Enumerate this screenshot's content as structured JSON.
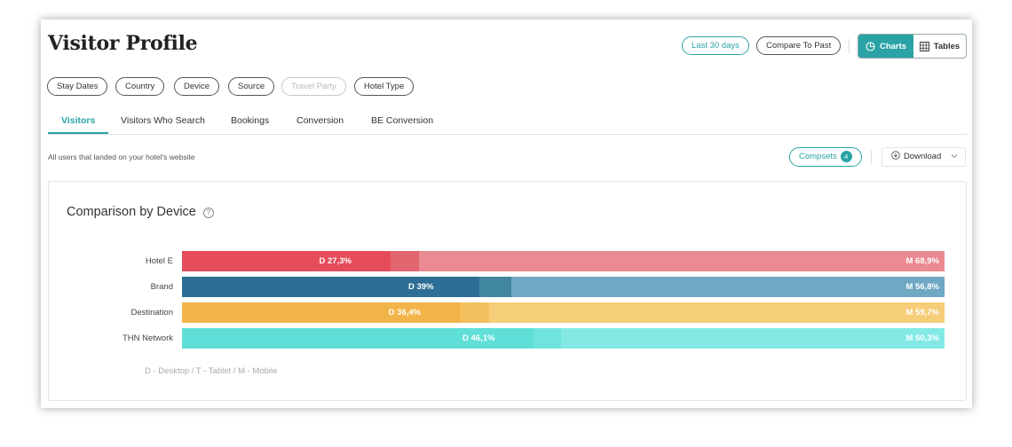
{
  "header": {
    "title": "Visitor Profile",
    "date_range_label": "Last 30 days",
    "compare_label": "Compare To Past",
    "view_toggle": {
      "charts_label": "Charts",
      "tables_label": "Tables",
      "active": "Charts"
    }
  },
  "filters": [
    "Stay Dates",
    "Country",
    "Device",
    "Source",
    "Travel Party",
    "Hotel Type"
  ],
  "disabled_filters": [
    "Travel Party"
  ],
  "tabs": [
    "Visitors",
    "Visitors Who Search",
    "Bookings",
    "Conversion",
    "BE Conversion"
  ],
  "active_tab": "Visitors",
  "subtitle": "All users that landed on your hotel's website",
  "compsets": {
    "label": "Compsets",
    "count": "4"
  },
  "download_label": "Download",
  "panel": {
    "title": "Comparison by Device",
    "legend": "D - Desktop / T - Tablet / M - Mobile"
  },
  "colors": {
    "accent": "#2aa3a6"
  },
  "chart_data": {
    "type": "bar",
    "orientation": "horizontal",
    "stacked": true,
    "xlim": [
      0,
      100
    ],
    "categories": [
      "Hotel E",
      "Brand",
      "Destination",
      "THN Network"
    ],
    "series": [
      {
        "name": "D",
        "values": [
          27.3,
          39,
          36.4,
          46.1
        ],
        "labels": [
          "D 27,3%",
          "D 39%",
          "D 36,4%",
          "D 46,1%"
        ]
      },
      {
        "name": "T",
        "values": [
          3.8,
          4.2,
          3.9,
          3.6
        ],
        "labels": [
          "",
          "",
          "",
          ""
        ]
      },
      {
        "name": "M",
        "values": [
          68.9,
          56.8,
          59.7,
          50.3
        ],
        "labels": [
          "M 68,9%",
          "M 56,8%",
          "M 59,7%",
          "M 50,3%"
        ]
      }
    ],
    "row_colors": [
      [
        "#e54c5a",
        "#e2656f",
        "#ea8a92"
      ],
      [
        "#2d6e96",
        "#40869f",
        "#6ea8c3"
      ],
      [
        "#f2b448",
        "#f4c05f",
        "#f6cd78"
      ],
      [
        "#5fdfd8",
        "#6fe3dd",
        "#84e9e4"
      ]
    ]
  }
}
